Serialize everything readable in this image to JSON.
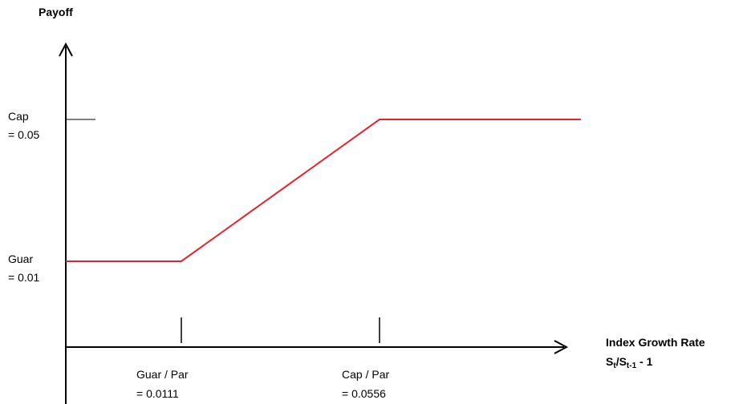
{
  "diagram": {
    "y_axis_label": "Payoff",
    "x_axis_label": "Index Growth Rate",
    "x_axis_formula": {
      "s1": "S",
      "sub1": "t",
      "slash": "/S",
      "sub2": "t-1",
      "tail": " - 1"
    },
    "cap_label": {
      "name": "Cap",
      "value": "= 0.05"
    },
    "guar_label": {
      "name": "Guar",
      "value": "= 0.01"
    },
    "guar_par_label": {
      "name": "Guar / Par",
      "value": "= 0.0111"
    },
    "cap_par_label": {
      "name": "Cap / Par",
      "value": "= 0.0556"
    },
    "payoff_line_color": "#e8202a",
    "axis_color": "#000000",
    "payoff_function": {
      "guarantee": 0.01,
      "cap": 0.05,
      "kink_points_x": [
        0.0111,
        0.0556
      ]
    }
  }
}
